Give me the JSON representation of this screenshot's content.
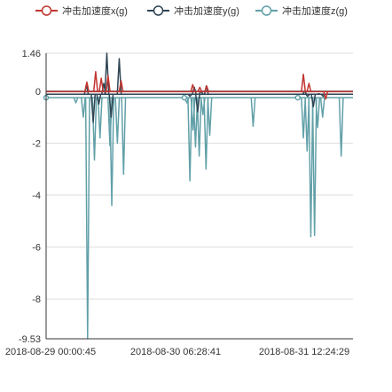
{
  "chart_data": {
    "type": "line",
    "y_axis": {
      "ticks": [
        1.46,
        0,
        -2,
        -4,
        -6,
        -8,
        -9.53
      ],
      "min": -9.53,
      "max": 1.46
    },
    "x_axis": {
      "tick_labels": [
        "2018-08-29 00:00:45",
        "2018-08-30 06:28:41",
        "2018-08-31 12:24:29"
      ],
      "start": "2018-08-29 00:00:45",
      "end": "2018-09-01 10:30:00"
    },
    "grid": true,
    "legend_position": "top-center",
    "baseline": {
      "x_g": -0.02,
      "y_g": -0.12,
      "z_g": -0.25
    },
    "series": [
      {
        "name": "冲击加速度x(g)",
        "color": "#c23531",
        "spikes": [
          {
            "t": "2018-08-29 10:58",
            "v": 0.35
          },
          {
            "t": "2018-08-29 13:20",
            "v": 0.75
          },
          {
            "t": "2018-08-29 14:50",
            "v": 0.5
          },
          {
            "t": "2018-08-29 16:40",
            "v": 0.6
          },
          {
            "t": "2018-08-29 20:10",
            "v": 0.4
          },
          {
            "t": "2018-08-30 15:25",
            "v": 0.25
          },
          {
            "t": "2018-08-30 17:20",
            "v": 0.15
          },
          {
            "t": "2018-08-30 19:10",
            "v": 0.2
          },
          {
            "t": "2018-08-31 21:10",
            "v": 0.65
          },
          {
            "t": "2018-08-31 22:40",
            "v": 0.3
          },
          {
            "t": "2018-09-01 03:10",
            "v": -0.3
          }
        ]
      },
      {
        "name": "冲击加速度y(g)",
        "color": "#2f4554",
        "spikes": [
          {
            "t": "2018-08-29 10:50",
            "v": 0.25
          },
          {
            "t": "2018-08-29 12:40",
            "v": -1.2
          },
          {
            "t": "2018-08-29 14:10",
            "v": -0.5
          },
          {
            "t": "2018-08-29 15:30",
            "v": 0.3
          },
          {
            "t": "2018-08-29 16:20",
            "v": 1.46
          },
          {
            "t": "2018-08-29 17:30",
            "v": -1.0
          },
          {
            "t": "2018-08-29 19:40",
            "v": 1.25
          },
          {
            "t": "2018-08-30 14:40",
            "v": -0.2
          },
          {
            "t": "2018-08-30 15:50",
            "v": 0.15
          },
          {
            "t": "2018-08-30 16:45",
            "v": -0.8
          },
          {
            "t": "2018-08-30 17:40",
            "v": 0.0
          },
          {
            "t": "2018-08-30 19:05",
            "v": 0.2
          },
          {
            "t": "2018-08-31 21:30",
            "v": 0.0
          },
          {
            "t": "2018-08-31 22:20",
            "v": -0.2
          },
          {
            "t": "2018-08-31 23:50",
            "v": -0.6
          },
          {
            "t": "2018-09-01 01:20",
            "v": -0.1
          },
          {
            "t": "2018-09-01 02:30",
            "v": -0.2
          }
        ]
      },
      {
        "name": "冲击加速度z(g)",
        "color": "#61a0a8",
        "spikes": [
          {
            "t": "2018-08-29 08:00",
            "v": -0.45
          },
          {
            "t": "2018-08-29 10:00",
            "v": -1.0
          },
          {
            "t": "2018-08-29 11:10",
            "v": -9.53
          },
          {
            "t": "2018-08-29 13:00",
            "v": -2.65
          },
          {
            "t": "2018-08-29 14:30",
            "v": -1.8
          },
          {
            "t": "2018-08-29 17:10",
            "v": -2.1
          },
          {
            "t": "2018-08-29 17:40",
            "v": -4.4
          },
          {
            "t": "2018-08-29 19:10",
            "v": -2.0
          },
          {
            "t": "2018-08-29 20:50",
            "v": -3.2
          },
          {
            "t": "2018-08-30 13:50",
            "v": -0.45
          },
          {
            "t": "2018-08-30 14:40",
            "v": -3.45
          },
          {
            "t": "2018-08-30 15:30",
            "v": -1.5
          },
          {
            "t": "2018-08-30 16:10",
            "v": -2.15
          },
          {
            "t": "2018-08-30 17:10",
            "v": -2.5
          },
          {
            "t": "2018-08-30 18:10",
            "v": -0.9
          },
          {
            "t": "2018-08-30 19:00",
            "v": -3.0
          },
          {
            "t": "2018-08-30 20:00",
            "v": -1.7
          },
          {
            "t": "2018-08-31 07:40",
            "v": -1.35
          },
          {
            "t": "2018-08-31 21:10",
            "v": -1.8
          },
          {
            "t": "2018-08-31 22:10",
            "v": -2.3
          },
          {
            "t": "2018-08-31 23:10",
            "v": -5.6
          },
          {
            "t": "2018-09-01 00:10",
            "v": -5.55
          },
          {
            "t": "2018-09-01 01:00",
            "v": -1.4
          },
          {
            "t": "2018-09-01 02:20",
            "v": -1.0
          },
          {
            "t": "2018-09-01 07:20",
            "v": -2.5
          }
        ]
      }
    ]
  }
}
